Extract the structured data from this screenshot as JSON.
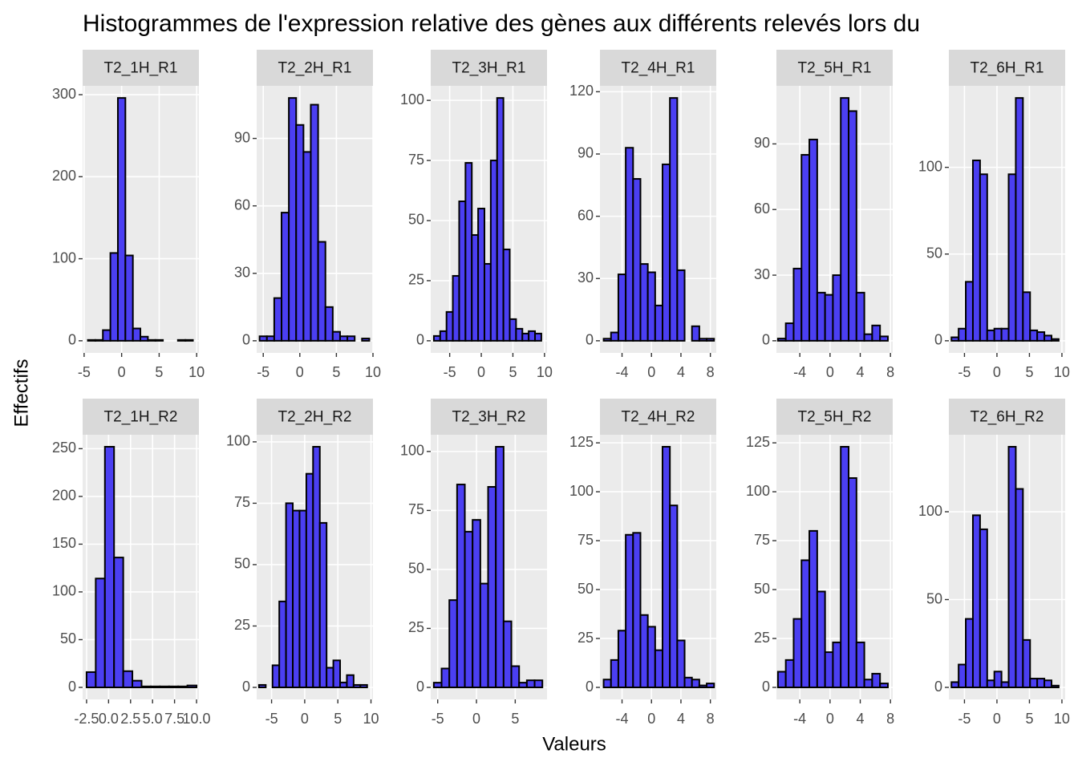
{
  "title": "Histogrammes de l'expression relative des gènes aux différents relevés lors du",
  "x_label": "Valeurs",
  "y_label": "Effectifs",
  "chart_data": [
    {
      "type": "histogram",
      "title": "T2_1H_R1",
      "color": "#4b3ff2",
      "grid": true,
      "bins": [
        -4.5,
        -3.5,
        -2.5,
        -1.5,
        -0.5,
        0.5,
        1.5,
        2.5,
        3.5,
        4.5,
        5.5,
        6.5,
        7.5,
        8.5,
        9.5
      ],
      "counts": [
        1,
        1,
        13,
        107,
        296,
        104,
        15,
        5,
        1,
        1,
        0,
        0,
        1,
        1
      ],
      "xlim": [
        -5.2,
        10.3
      ],
      "xticks": [
        -5,
        0,
        5,
        10
      ],
      "ylim": [
        -14.8,
        310.8
      ],
      "yticks": [
        0,
        100,
        200,
        300
      ]
    },
    {
      "type": "histogram",
      "title": "T2_2H_R1",
      "color": "#4b3ff2",
      "grid": true,
      "bins": [
        -5.5,
        -4.5,
        -3.5,
        -2.5,
        -1.5,
        -0.5,
        0.5,
        1.5,
        2.5,
        3.5,
        4.5,
        5.5,
        6.5,
        7.5,
        8.5,
        9.5
      ],
      "counts": [
        2,
        2,
        19,
        57,
        108,
        96,
        84,
        105,
        44,
        15,
        4,
        2,
        2,
        0,
        1
      ],
      "xlim": [
        -5.9,
        10
      ],
      "xticks": [
        -5,
        0,
        5,
        10
      ],
      "ylim": [
        -5.4,
        113.4
      ],
      "yticks": [
        0,
        30,
        60,
        90
      ]
    },
    {
      "type": "histogram",
      "title": "T2_3H_R1",
      "color": "#4b3ff2",
      "grid": true,
      "bins": [
        -7.5,
        -6.5,
        -5.5,
        -4.5,
        -3.5,
        -2.5,
        -1.5,
        -0.5,
        0.5,
        1.5,
        2.5,
        3.5,
        4.5,
        5.5,
        6.5,
        7.5,
        8.5,
        9.5
      ],
      "counts": [
        2,
        4,
        12,
        27,
        58,
        74,
        44,
        55,
        32,
        75,
        101,
        38,
        9,
        5,
        3,
        4,
        3
      ],
      "xlim": [
        -8,
        10.4
      ],
      "xticks": [
        -5,
        0,
        5,
        10
      ],
      "ylim": [
        -5.05,
        106.05
      ],
      "yticks": [
        0,
        25,
        50,
        75,
        100
      ]
    },
    {
      "type": "histogram",
      "title": "T2_4H_R1",
      "color": "#4b3ff2",
      "grid": true,
      "bins": [
        -6.5,
        -5.5,
        -4.5,
        -3.5,
        -2.5,
        -1.5,
        -0.5,
        0.5,
        1.5,
        2.5,
        3.5,
        4.5,
        5.5,
        6.5,
        7.5,
        8.5
      ],
      "counts": [
        1,
        4,
        32,
        93,
        78,
        37,
        33,
        17,
        85,
        117,
        34,
        0,
        7,
        1,
        1
      ],
      "xlim": [
        -7,
        8.8
      ],
      "xticks": [
        -4,
        0,
        4,
        8
      ],
      "ylim": [
        -5.85,
        122.85
      ],
      "yticks": [
        0,
        30,
        60,
        90,
        120
      ]
    },
    {
      "type": "histogram",
      "title": "T2_5H_R1",
      "color": "#4b3ff2",
      "grid": true,
      "bins": [
        -6.9,
        -5.86,
        -4.82,
        -3.78,
        -2.74,
        -1.7,
        -0.66,
        0.38,
        1.42,
        2.46,
        3.5,
        4.54,
        5.58,
        6.62,
        7.66
      ],
      "counts": [
        1,
        8,
        33,
        85,
        92,
        22,
        21,
        30,
        111,
        105,
        22,
        3,
        7,
        2
      ],
      "xlim": [
        -7.1,
        8.3
      ],
      "xticks": [
        -4,
        0,
        4,
        8
      ],
      "ylim": [
        -5.55,
        116.55
      ],
      "yticks": [
        0,
        30,
        60,
        90
      ]
    },
    {
      "type": "histogram",
      "title": "T2_6H_R1",
      "color": "#4b3ff2",
      "grid": true,
      "bins": [
        -7,
        -5.9,
        -4.8,
        -3.7,
        -2.6,
        -1.5,
        -0.4,
        0.7,
        1.8,
        2.9,
        4,
        5.1,
        6.2,
        7.3,
        8.4,
        9.5
      ],
      "counts": [
        2,
        7,
        34,
        104,
        96,
        6,
        7,
        7,
        96,
        140,
        28,
        6,
        5,
        3,
        1
      ],
      "xlim": [
        -7.4,
        10.5
      ],
      "xticks": [
        -5,
        0,
        5,
        10
      ],
      "ylim": [
        -7,
        147
      ],
      "yticks": [
        0,
        50,
        100
      ]
    },
    {
      "type": "histogram",
      "title": "T2_1H_R2",
      "color": "#4b3ff2",
      "grid": true,
      "bins": [
        -2.5,
        -1.458,
        -0.417,
        0.625,
        1.667,
        2.708,
        3.75,
        4.792,
        5.833,
        6.875,
        7.917,
        8.958,
        10
      ],
      "counts": [
        16,
        114,
        252,
        136,
        17,
        7,
        1,
        1,
        1,
        1,
        1,
        2
      ],
      "xlim": [
        -2.95,
        10.27
      ],
      "xticks": [
        -2.5,
        {
          "value": 0,
          "label": "0.0"
        },
        2.5,
        {
          "value": 5,
          "label": "5.0"
        },
        7.5,
        {
          "value": 10,
          "label": "10.0"
        }
      ],
      "ylim": [
        -12.6,
        264.6
      ],
      "yticks": [
        0,
        50,
        100,
        150,
        200,
        250
      ]
    },
    {
      "type": "histogram",
      "title": "T2_2H_R2",
      "color": "#4b3ff2",
      "grid": true,
      "bins": [
        -6.9,
        -5.88,
        -4.86,
        -3.84,
        -2.82,
        -1.8,
        -0.78,
        0.24,
        1.26,
        2.28,
        3.3,
        4.32,
        5.34,
        6.36,
        7.38,
        8.4,
        9.42
      ],
      "counts": [
        1,
        0,
        9,
        35,
        75,
        72,
        72,
        87,
        98,
        67,
        8,
        11,
        2,
        5,
        1,
        1
      ],
      "xlim": [
        -7.25,
        10.3
      ],
      "xticks": [
        -5,
        0,
        5,
        10
      ],
      "ylim": [
        -4.9,
        102.9
      ],
      "yticks": [
        0,
        25,
        50,
        75,
        100
      ]
    },
    {
      "type": "histogram",
      "title": "T2_3H_R2",
      "color": "#4b3ff2",
      "grid": true,
      "bins": [
        -5.5,
        -4.5,
        -3.5,
        -2.5,
        -1.5,
        -0.5,
        0.5,
        1.5,
        2.5,
        3.5,
        4.5,
        5.5,
        6.5,
        7.5,
        8.5
      ],
      "counts": [
        2,
        8,
        37,
        86,
        66,
        71,
        44,
        85,
        102,
        28,
        9,
        2,
        3,
        3
      ],
      "xlim": [
        -5.9,
        9.1
      ],
      "xticks": [
        -5,
        0,
        5
      ],
      "ylim": [
        -5.1,
        107.1
      ],
      "yticks": [
        0,
        25,
        50,
        75,
        100
      ]
    },
    {
      "type": "histogram",
      "title": "T2_4H_R2",
      "color": "#4b3ff2",
      "grid": true,
      "bins": [
        -6.5,
        -5.5,
        -4.5,
        -3.5,
        -2.5,
        -1.5,
        -0.5,
        0.5,
        1.5,
        2.5,
        3.5,
        4.5,
        5.5,
        6.5,
        7.5,
        8.5
      ],
      "counts": [
        4,
        14,
        29,
        78,
        79,
        37,
        31,
        19,
        123,
        93,
        24,
        5,
        4,
        1,
        2
      ],
      "xlim": [
        -7,
        8.8
      ],
      "xticks": [
        -4,
        0,
        4,
        8
      ],
      "ylim": [
        -6.15,
        129.15
      ],
      "yticks": [
        0,
        25,
        50,
        75,
        100,
        125
      ]
    },
    {
      "type": "histogram",
      "title": "T2_5H_R2",
      "color": "#4b3ff2",
      "grid": true,
      "bins": [
        -6.9,
        -5.86,
        -4.82,
        -3.78,
        -2.74,
        -1.7,
        -0.66,
        0.38,
        1.42,
        2.46,
        3.5,
        4.54,
        5.58,
        6.62,
        7.66
      ],
      "counts": [
        8,
        14,
        35,
        65,
        80,
        49,
        18,
        23,
        123,
        107,
        23,
        4,
        7,
        2
      ],
      "xlim": [
        -7.1,
        8.3
      ],
      "xticks": [
        -4,
        0,
        4,
        8
      ],
      "ylim": [
        -6.15,
        129.15
      ],
      "yticks": [
        0,
        25,
        50,
        75,
        100,
        125
      ]
    },
    {
      "type": "histogram",
      "title": "T2_6H_R2",
      "color": "#4b3ff2",
      "grid": true,
      "bins": [
        -7,
        -5.9,
        -4.8,
        -3.7,
        -2.6,
        -1.5,
        -0.4,
        0.7,
        1.8,
        2.9,
        4,
        5.1,
        6.2,
        7.3,
        8.4,
        9.5
      ],
      "counts": [
        3,
        13,
        39,
        98,
        90,
        4,
        9,
        3,
        137,
        113,
        27,
        5,
        5,
        4,
        1
      ],
      "xlim": [
        -7.4,
        10.5
      ],
      "xticks": [
        -5,
        0,
        5,
        10
      ],
      "ylim": [
        -6.85,
        143.85
      ],
      "yticks": [
        0,
        50,
        100
      ]
    }
  ]
}
